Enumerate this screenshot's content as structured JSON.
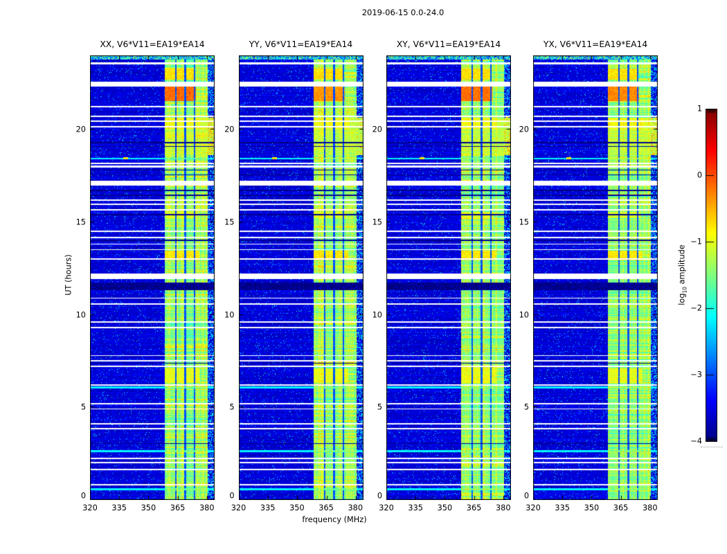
{
  "figure": {
    "title": "2019-06-15 0.0-24.0",
    "background": "#ffffff"
  },
  "chart_data": {
    "type": "heatmap",
    "title": "2019-06-15 0.0-24.0",
    "xlabel": "frequency (MHz)",
    "ylabel": "UT (hours)",
    "x_range": [
      320,
      384
    ],
    "y_range": [
      0,
      24
    ],
    "x_ticks": [
      320,
      335,
      350,
      365,
      380
    ],
    "y_ticks": [
      0,
      5,
      10,
      15,
      20
    ],
    "grid": false,
    "panels": [
      {
        "key": "xx",
        "label": "XX, V6*V11=EA19*EA14",
        "seed": 101,
        "blob_value": -0.15,
        "edge_spike": 0.9
      },
      {
        "key": "yy",
        "label": "YY, V6*V11=EA19*EA14",
        "seed": 202,
        "blob_value": -0.35,
        "edge_spike": 0.35
      },
      {
        "key": "xy",
        "label": "XY, V6*V11=EA19*EA14",
        "seed": 303,
        "blob_value": -0.18,
        "edge_spike": 0.55
      },
      {
        "key": "yx",
        "label": "YX, V6*V11=EA19*EA14",
        "seed": 404,
        "blob_value": -0.3,
        "edge_spike": 0.6
      }
    ],
    "colorbar": {
      "label_prefix": "log",
      "label_sub": "10",
      "label_suffix": " amplitude",
      "ticks": [
        1,
        0,
        -1,
        -2,
        -3,
        -4
      ],
      "tick_labels": [
        "1",
        "0",
        "−1",
        "−2",
        "−3",
        "−4"
      ],
      "range": [
        -4,
        1
      ],
      "colormap": "jet",
      "legend_position": "right"
    },
    "features": {
      "background_level": -3.55,
      "rfi_band": {
        "f0": 358.5,
        "f1": 380.5,
        "value": -1.5
      },
      "band_gaps_mhz": [
        [
          363.6,
          364.5
        ],
        [
          368.4,
          369.3
        ],
        [
          373.3,
          374.1
        ]
      ],
      "edge_region": {
        "f0": 380.5,
        "f1": 384.0
      },
      "edge_spike_ut": [
        18.6,
        20.7
      ],
      "white_stripes_ut": [
        [
          23.5,
          23.62
        ],
        [
          22.32,
          22.58
        ],
        [
          21.18,
          21.26
        ],
        [
          20.66,
          20.74
        ],
        [
          20.4,
          20.47
        ],
        [
          20.12,
          20.2
        ],
        [
          18.14,
          18.22
        ],
        [
          17.96,
          18.04
        ],
        [
          16.97,
          17.22
        ],
        [
          16.16,
          16.24
        ],
        [
          15.92,
          15.99
        ],
        [
          15.63,
          15.7
        ],
        [
          14.46,
          14.53
        ],
        [
          14.12,
          14.19
        ],
        [
          13.78,
          13.85
        ],
        [
          13.48,
          13.55
        ],
        [
          12.97,
          13.04
        ],
        [
          11.92,
          12.22
        ],
        [
          10.86,
          10.93
        ],
        [
          10.56,
          10.63
        ],
        [
          9.56,
          9.63
        ],
        [
          9.27,
          9.34
        ],
        [
          7.76,
          7.83
        ],
        [
          7.47,
          7.54
        ],
        [
          7.18,
          7.25
        ],
        [
          6.16,
          6.23
        ],
        [
          5.17,
          5.24
        ],
        [
          4.88,
          4.95
        ],
        [
          4.07,
          4.14
        ],
        [
          3.82,
          3.89
        ],
        [
          2.22,
          2.29
        ],
        [
          1.98,
          2.05
        ],
        [
          1.62,
          1.69
        ],
        [
          0.8,
          0.87
        ]
      ],
      "black_stripes_ut": [
        [
          19.27,
          19.34
        ],
        [
          19.06,
          19.12
        ],
        [
          17.78,
          17.84
        ],
        [
          17.52,
          17.58
        ],
        [
          16.67,
          16.73
        ],
        [
          16.42,
          16.48
        ],
        [
          15.37,
          15.43
        ],
        [
          14.0,
          14.06
        ],
        [
          11.32,
          11.72
        ],
        [
          7.36,
          7.42
        ],
        [
          3.02,
          3.08
        ]
      ],
      "cyan_stripes_ut": [
        [
          18.38,
          18.48
        ],
        [
          6.02,
          6.12
        ],
        [
          2.58,
          2.68
        ],
        [
          0.52,
          0.62
        ]
      ],
      "blobs": [
        {
          "ut": [
            22.68,
            23.3
          ],
          "f": [
            358.5,
            374.0
          ],
          "v": -0.75,
          "j": 0.5
        },
        {
          "ut": [
            20.05,
            20.62
          ],
          "f": [
            358.5,
            377.0
          ],
          "v": -0.95,
          "j": 0.5
        },
        {
          "ut": [
            18.6,
            20.62
          ],
          "f": [
            358.5,
            384.0
          ],
          "v": -1.25,
          "j": 0.6
        },
        {
          "ut": [
            15.2,
            15.55
          ],
          "f": [
            358.5,
            375.0
          ],
          "v": -1.05,
          "j": 0.4
        },
        {
          "ut": [
            12.95,
            13.45
          ],
          "f": [
            358.5,
            376.0
          ],
          "v": -0.8,
          "j": 0.5
        },
        {
          "ut": [
            6.3,
            7.12
          ],
          "f": [
            358.5,
            376.0
          ],
          "v": -1.0,
          "j": 0.5
        }
      ],
      "main_blob": {
        "ut": [
          21.55,
          22.3
        ],
        "f": [
          358.5,
          374.5
        ],
        "j": 0.45
      },
      "point_source": {
        "ut": [
          18.38,
          18.52
        ],
        "f": [
          337.0,
          339.5
        ],
        "v": -0.8
      },
      "top_stripe_ut": [
        23.78,
        24.0
      ]
    }
  }
}
